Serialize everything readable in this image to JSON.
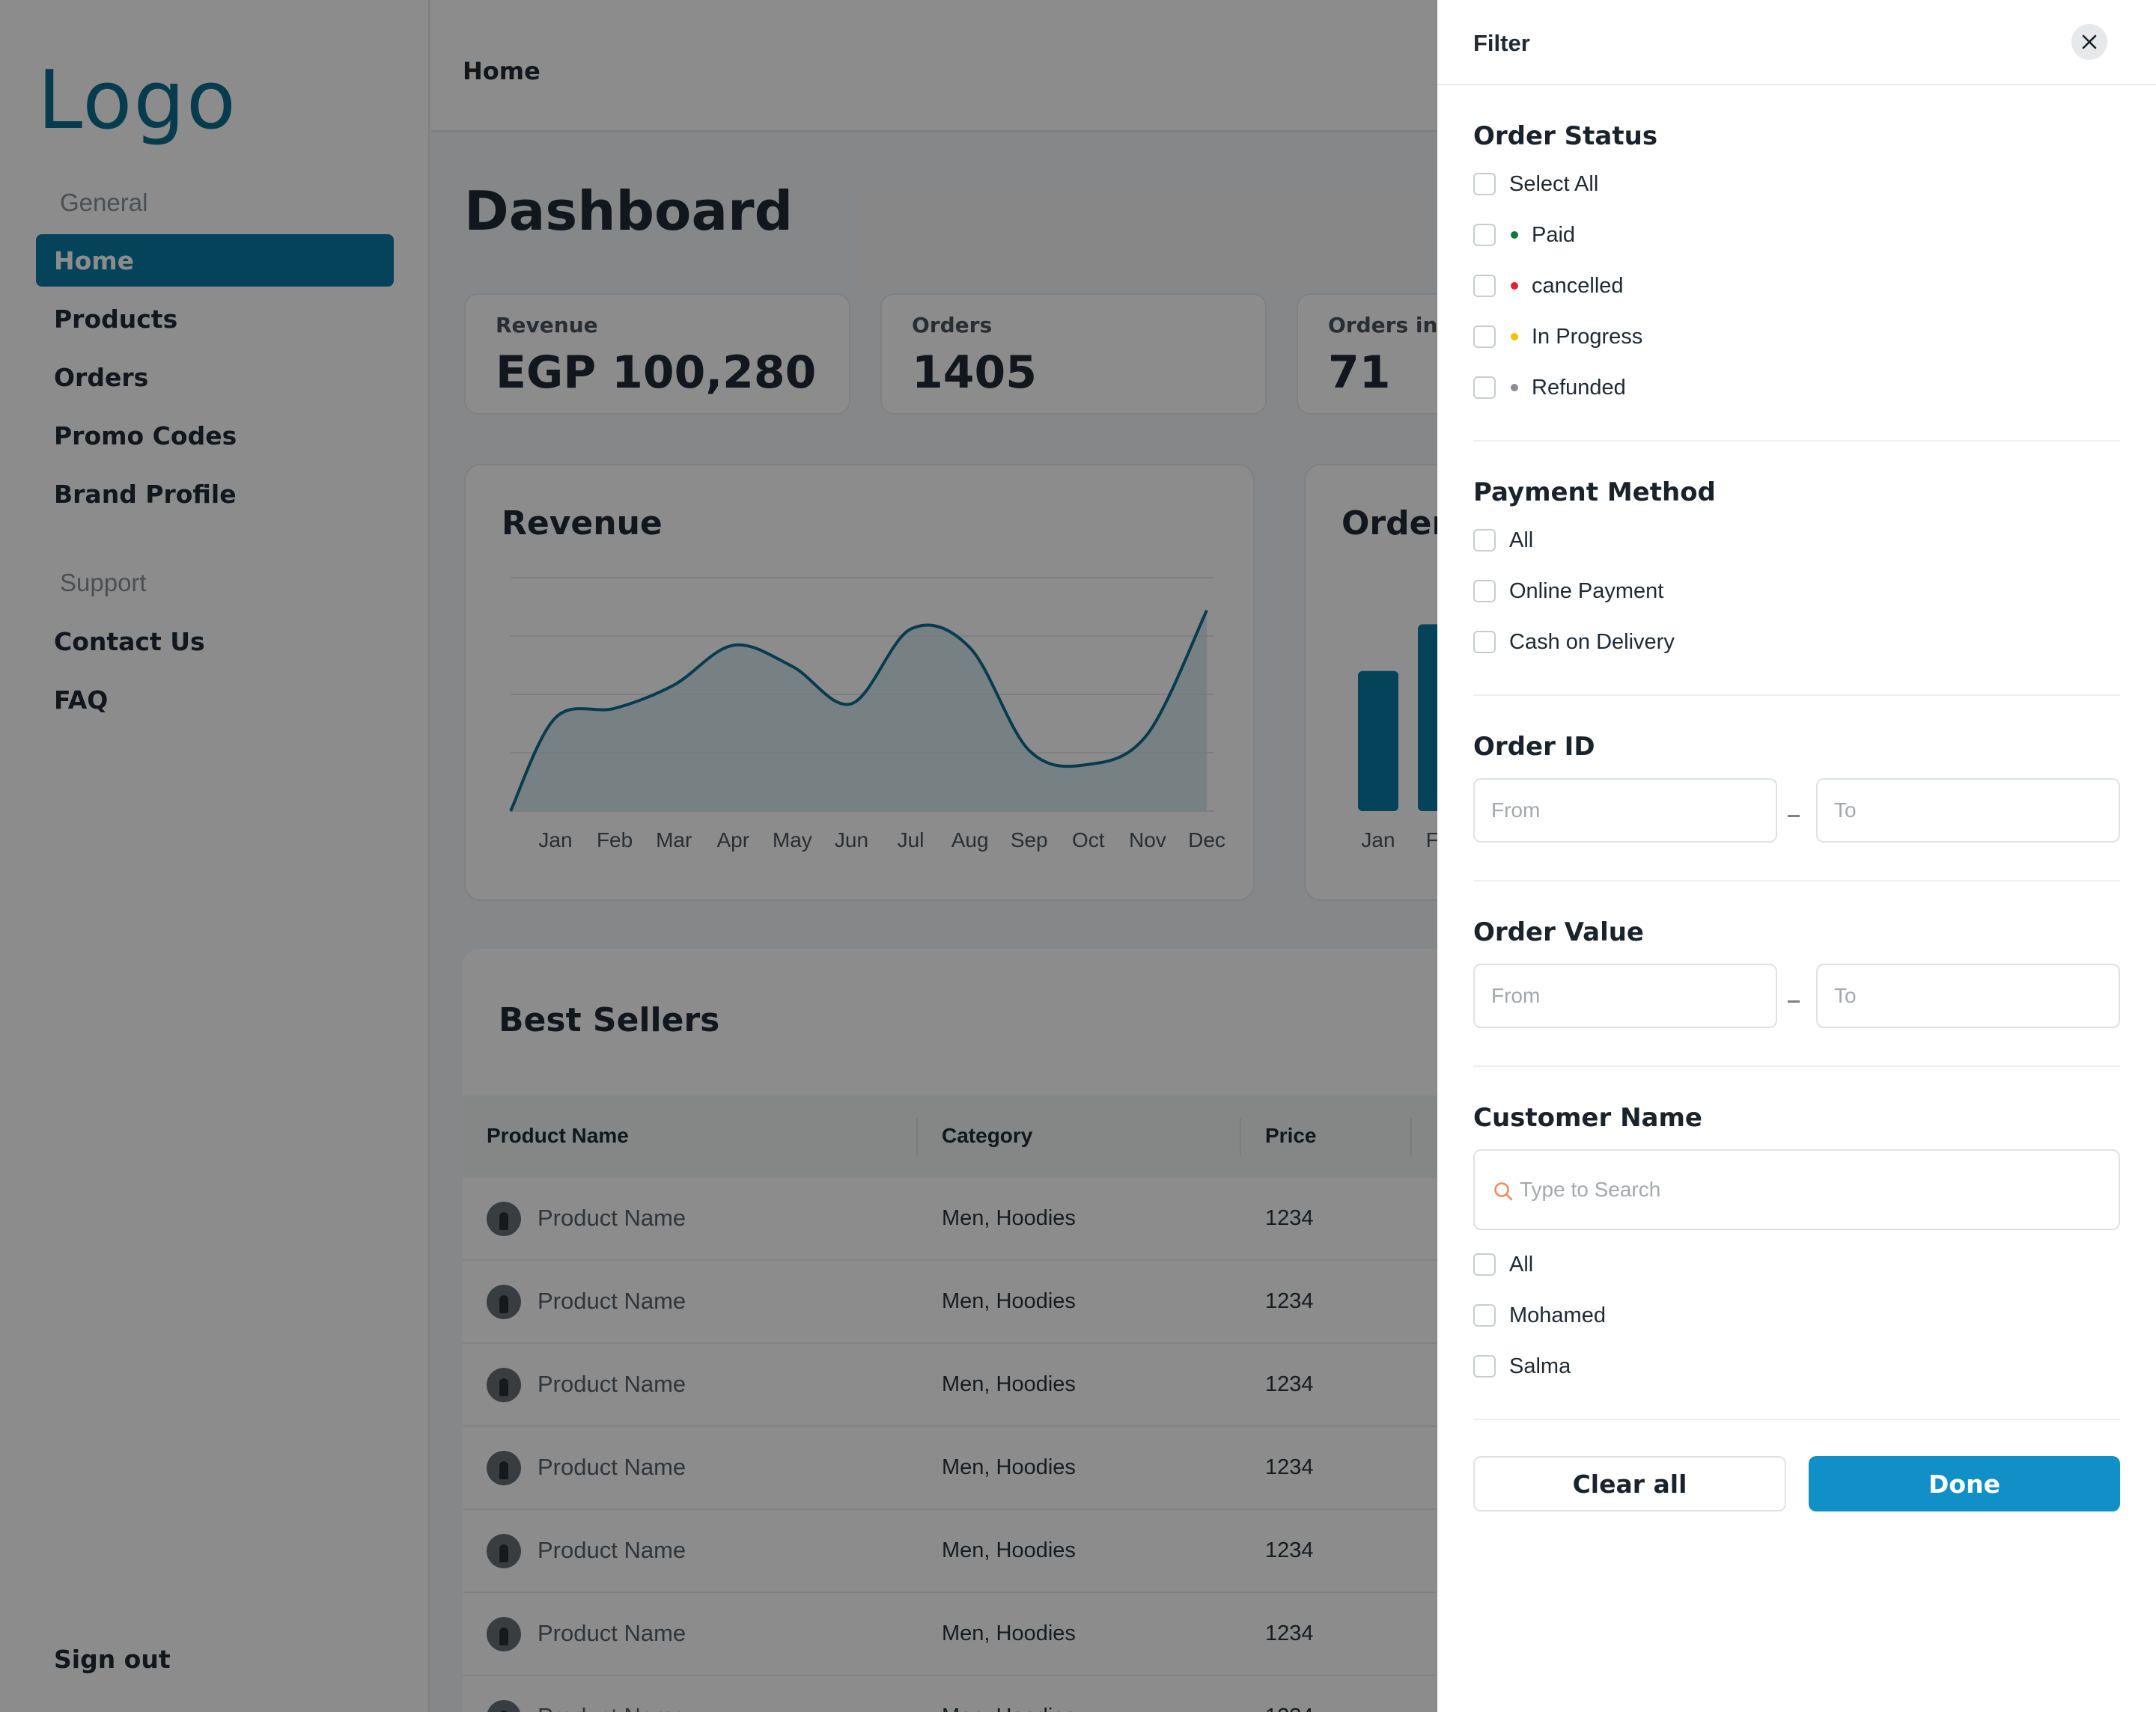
{
  "sidebar": {
    "logo": "Logo",
    "general_label": "General",
    "support_label": "Support",
    "items": [
      {
        "label": "Home"
      },
      {
        "label": "Products"
      },
      {
        "label": "Orders"
      },
      {
        "label": "Promo Codes"
      },
      {
        "label": "Brand Profile"
      }
    ],
    "support_items": [
      {
        "label": "Contact Us"
      },
      {
        "label": "FAQ"
      }
    ],
    "signout": "Sign out"
  },
  "header": {
    "breadcrumb": "Home"
  },
  "main": {
    "title": "Dashboard",
    "stats": [
      {
        "label": "Revenue",
        "value": "EGP 100,280"
      },
      {
        "label": "Orders",
        "value": "1405"
      },
      {
        "label": "Orders in p",
        "value": "71"
      }
    ]
  },
  "chart_data": [
    {
      "type": "area",
      "title": "Revenue",
      "categories": [
        "Jan",
        "Feb",
        "Mar",
        "Apr",
        "May",
        "Jun",
        "Jul",
        "Aug",
        "Sep",
        "Oct",
        "Nov",
        "Dec"
      ],
      "values": [
        40,
        44,
        54,
        71,
        62,
        46,
        78,
        70,
        26,
        20,
        33,
        86
      ],
      "ylim": [
        0,
        100
      ],
      "grid": true,
      "color": "#0d6e91"
    },
    {
      "type": "bar",
      "title": "Order",
      "categories": [
        "Jan",
        "Fe"
      ],
      "values": [
        60,
        80
      ],
      "ylim": [
        0,
        100
      ],
      "color": "#0a7aa6"
    }
  ],
  "table": {
    "title": "Best Sellers",
    "columns": [
      "Product Name",
      "Category",
      "Price"
    ],
    "rows": [
      {
        "name": "Product Name",
        "category": "Men, Hoodies",
        "price": "1234"
      },
      {
        "name": "Product Name",
        "category": "Men, Hoodies",
        "price": "1234"
      },
      {
        "name": "Product Name",
        "category": "Men, Hoodies",
        "price": "1234"
      },
      {
        "name": "Product Name",
        "category": "Men, Hoodies",
        "price": "1234"
      },
      {
        "name": "Product Name",
        "category": "Men, Hoodies",
        "price": "1234"
      },
      {
        "name": "Product Name",
        "category": "Men, Hoodies",
        "price": "1234"
      },
      {
        "name": "Product Name",
        "category": "Men, Hoodies",
        "price": "1234"
      }
    ]
  },
  "filter": {
    "title": "Filter",
    "close_icon": "close-icon",
    "order_status": {
      "title": "Order Status",
      "options": [
        {
          "label": "Select All",
          "dot": null
        },
        {
          "label": "Paid",
          "dot": "#0f7a3f"
        },
        {
          "label": "cancelled",
          "dot": "#e0203a"
        },
        {
          "label": "In Progress",
          "dot": "#f2c200"
        },
        {
          "label": "Refunded",
          "dot": "#8a8f93"
        }
      ]
    },
    "payment_method": {
      "title": "Payment Method",
      "options": [
        {
          "label": "All"
        },
        {
          "label": "Online Payment"
        },
        {
          "label": "Cash on Delivery"
        }
      ]
    },
    "order_id": {
      "title": "Order ID",
      "from_placeholder": "From",
      "to_placeholder": "To"
    },
    "order_value": {
      "title": "Order Value",
      "from_placeholder": "From",
      "to_placeholder": "To"
    },
    "customer_name": {
      "title": "Customer Name",
      "search_placeholder": "Type to Search",
      "search_icon": "search-icon",
      "search_icon_color": "#f08a5d",
      "options": [
        {
          "label": "All"
        },
        {
          "label": "Mohamed"
        },
        {
          "label": "Salma"
        }
      ]
    },
    "clear_label": "Clear all",
    "done_label": "Done",
    "accent": "#1190c7"
  }
}
